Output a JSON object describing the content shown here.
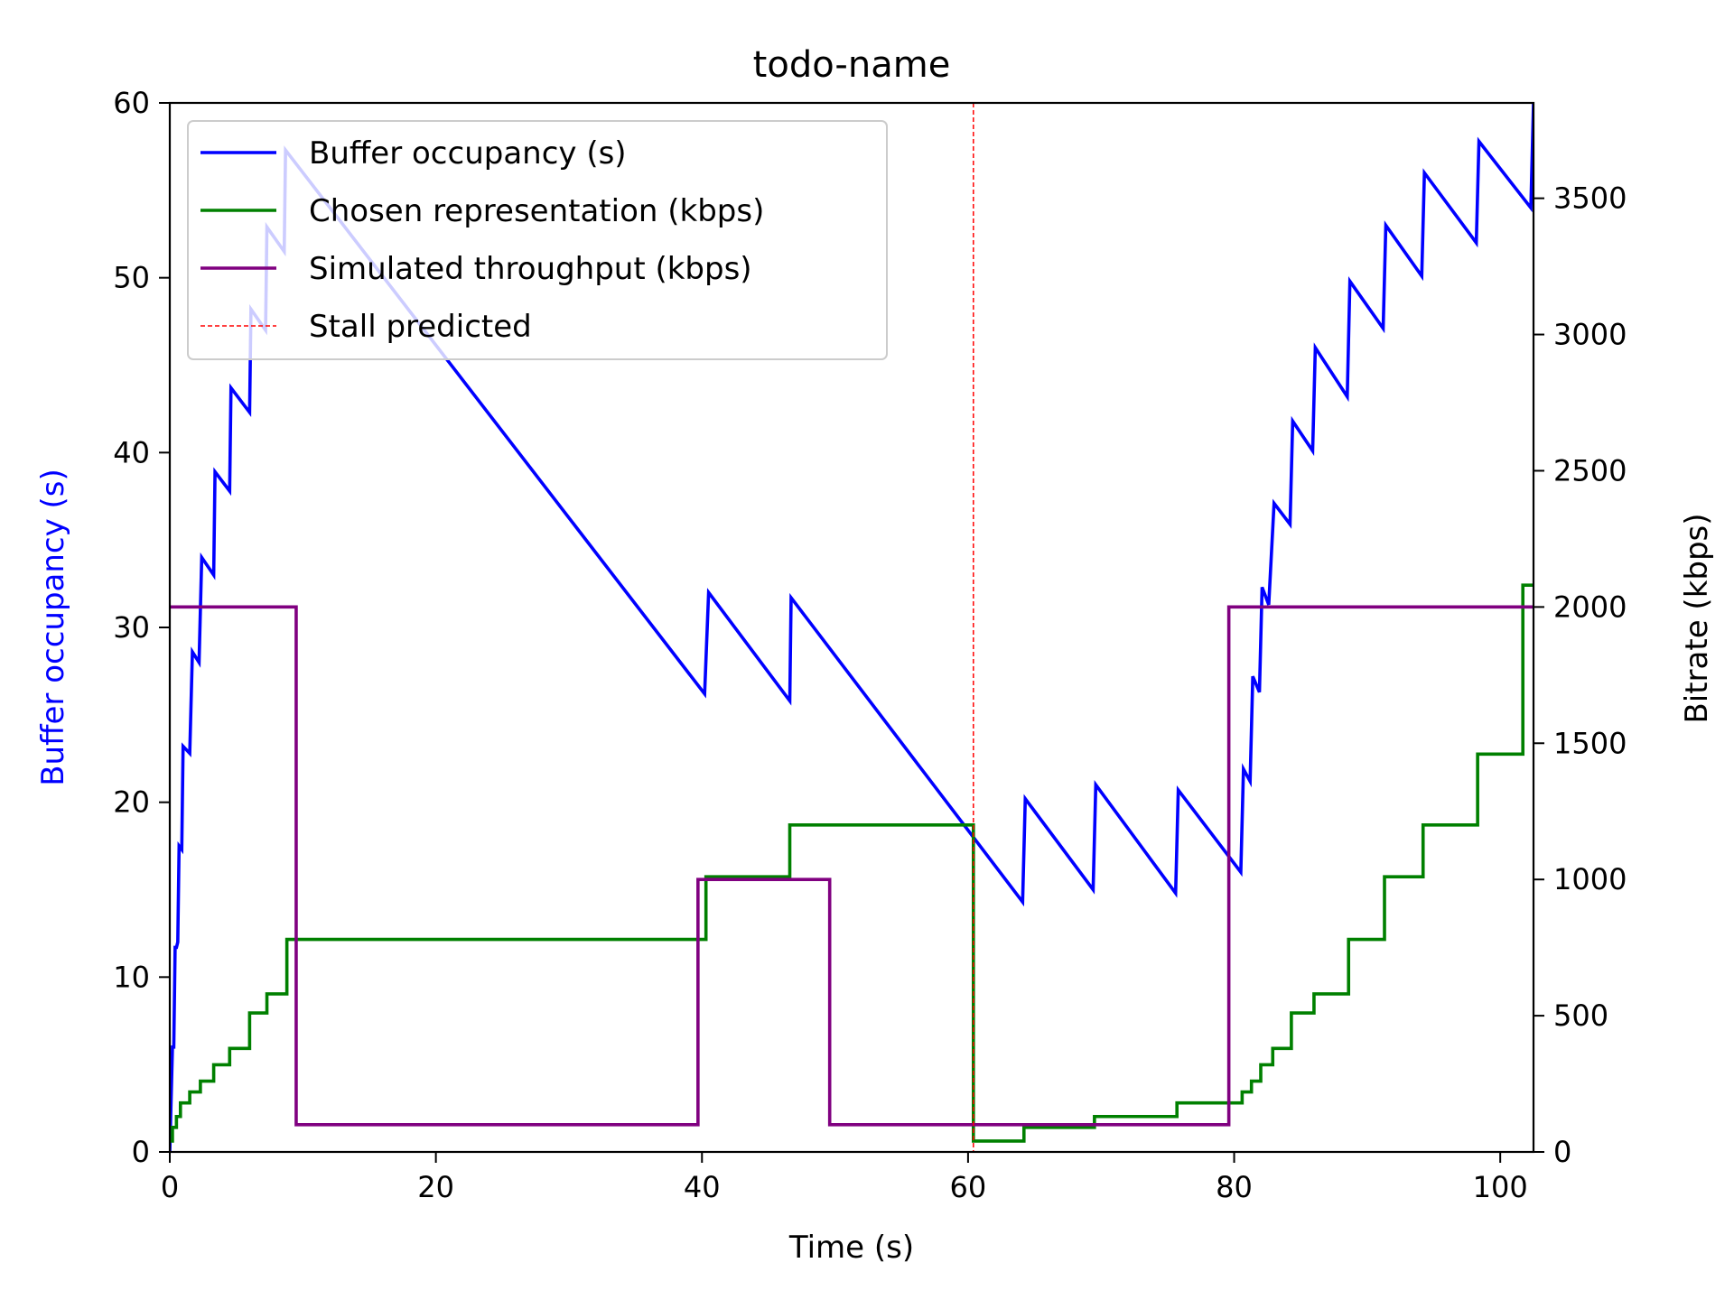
{
  "chart_data": {
    "type": "line",
    "title": "todo-name",
    "xlabel": "Time (s)",
    "ylabel_left": "Buffer occupancy (s)",
    "ylabel_right": "Bitrate (kbps)",
    "xlim": [
      0,
      102.5
    ],
    "ylim_left": [
      0,
      60
    ],
    "ylim_right": [
      0,
      3850
    ],
    "x_ticks": [
      0,
      20,
      40,
      60,
      80,
      100
    ],
    "y_left_ticks": [
      0,
      10,
      20,
      30,
      40,
      50,
      60
    ],
    "y_right_ticks": [
      0,
      500,
      1000,
      1500,
      2000,
      2500,
      3000,
      3500
    ],
    "legend_position": "upper-left",
    "grid": false,
    "colors": {
      "buffer": "#0000ff",
      "representation": "#008000",
      "throughput": "#800080",
      "stall": "#ff0000",
      "left_axis_label": "#0000ff"
    },
    "series": [
      {
        "name": "Buffer occupancy (s)",
        "axis": "left",
        "style": "line",
        "points": [
          [
            0,
            0
          ],
          [
            0.2,
            6
          ],
          [
            0.3,
            6
          ],
          [
            0.4,
            11.7
          ],
          [
            0.5,
            11.7
          ],
          [
            0.6,
            12
          ],
          [
            0.7,
            17.5
          ],
          [
            0.9,
            17.3
          ],
          [
            1.0,
            23.2
          ],
          [
            1.5,
            22.8
          ],
          [
            1.7,
            28.6
          ],
          [
            2.2,
            28.0
          ],
          [
            2.4,
            34
          ],
          [
            3.3,
            33
          ],
          [
            3.4,
            38.9
          ],
          [
            4.5,
            37.8
          ],
          [
            4.6,
            43.7
          ],
          [
            6.0,
            42.3
          ],
          [
            6.1,
            48.2
          ],
          [
            7.2,
            47
          ],
          [
            7.3,
            52.9
          ],
          [
            8.6,
            51.5
          ],
          [
            8.7,
            57.3
          ],
          [
            40.2,
            26.2
          ],
          [
            40.5,
            32
          ],
          [
            46.6,
            25.8
          ],
          [
            46.7,
            31.7
          ],
          [
            64.1,
            14.3
          ],
          [
            64.3,
            20.2
          ],
          [
            69.4,
            15.0
          ],
          [
            69.6,
            21.0
          ],
          [
            75.6,
            14.8
          ],
          [
            75.8,
            20.7
          ],
          [
            80.5,
            16.0
          ],
          [
            80.7,
            21.9
          ],
          [
            81.2,
            21.2
          ],
          [
            81.4,
            27.2
          ],
          [
            81.9,
            26.3
          ],
          [
            82.1,
            32.3
          ],
          [
            82.6,
            31.3
          ],
          [
            83.0,
            37.1
          ],
          [
            84.2,
            35.9
          ],
          [
            84.4,
            41.8
          ],
          [
            85.9,
            40.1
          ],
          [
            86.1,
            46.0
          ],
          [
            88.5,
            43.2
          ],
          [
            88.7,
            49.8
          ],
          [
            91.2,
            47.1
          ],
          [
            91.4,
            53.0
          ],
          [
            94.1,
            50.1
          ],
          [
            94.3,
            56.0
          ],
          [
            98.2,
            52.0
          ],
          [
            98.4,
            57.8
          ],
          [
            102.3,
            54.0
          ],
          [
            102.5,
            60
          ]
        ]
      },
      {
        "name": "Chosen representation (kbps)",
        "axis": "right",
        "style": "step-post",
        "points": [
          [
            0,
            40
          ],
          [
            0.2,
            40
          ],
          [
            0.2,
            90
          ],
          [
            0.5,
            90
          ],
          [
            0.5,
            130
          ],
          [
            0.8,
            130
          ],
          [
            0.8,
            180
          ],
          [
            1.5,
            180
          ],
          [
            1.5,
            220
          ],
          [
            2.3,
            220
          ],
          [
            2.3,
            260
          ],
          [
            3.3,
            260
          ],
          [
            3.3,
            320
          ],
          [
            4.5,
            320
          ],
          [
            4.5,
            380
          ],
          [
            6.0,
            380
          ],
          [
            6.0,
            510
          ],
          [
            7.3,
            510
          ],
          [
            7.3,
            580
          ],
          [
            8.8,
            580
          ],
          [
            8.8,
            780
          ],
          [
            40.3,
            780
          ],
          [
            40.3,
            1010
          ],
          [
            46.6,
            1010
          ],
          [
            46.6,
            1200
          ],
          [
            60.4,
            1200
          ],
          [
            60.4,
            40
          ],
          [
            64.2,
            40
          ],
          [
            64.2,
            90
          ],
          [
            69.5,
            90
          ],
          [
            69.5,
            130
          ],
          [
            75.7,
            130
          ],
          [
            75.7,
            180
          ],
          [
            80.6,
            180
          ],
          [
            80.6,
            220
          ],
          [
            81.3,
            220
          ],
          [
            81.3,
            260
          ],
          [
            82.0,
            260
          ],
          [
            82.0,
            320
          ],
          [
            82.9,
            320
          ],
          [
            82.9,
            380
          ],
          [
            84.3,
            380
          ],
          [
            84.3,
            510
          ],
          [
            86.0,
            510
          ],
          [
            86.0,
            580
          ],
          [
            88.6,
            580
          ],
          [
            88.6,
            780
          ],
          [
            91.3,
            780
          ],
          [
            91.3,
            1010
          ],
          [
            94.2,
            1010
          ],
          [
            94.2,
            1200
          ],
          [
            98.3,
            1200
          ],
          [
            98.3,
            1460
          ],
          [
            101.7,
            1460
          ],
          [
            101.7,
            2080
          ],
          [
            102.5,
            2080
          ]
        ]
      },
      {
        "name": "Simulated throughput (kbps)",
        "axis": "right",
        "style": "step-post",
        "points": [
          [
            0,
            2000
          ],
          [
            9.5,
            2000
          ],
          [
            9.5,
            100
          ],
          [
            39.7,
            100
          ],
          [
            39.7,
            1000
          ],
          [
            49.6,
            1000
          ],
          [
            49.6,
            100
          ],
          [
            79.6,
            100
          ],
          [
            79.6,
            2000
          ],
          [
            102.5,
            2000
          ]
        ]
      }
    ],
    "stall_lines": [
      {
        "name": "Stall predicted",
        "x": 60.4
      }
    ]
  }
}
